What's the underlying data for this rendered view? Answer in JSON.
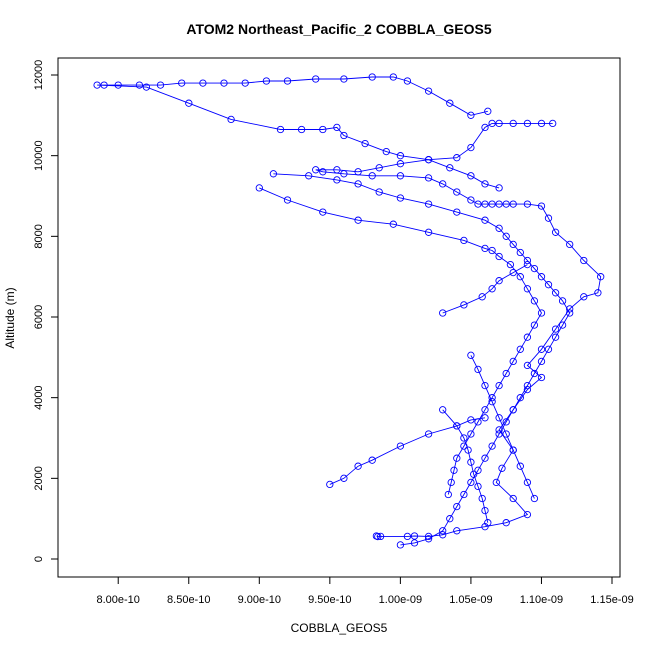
{
  "chart_data": {
    "type": "line",
    "title": "ATOM2 Northeast_Pacific_2 COBBLA_GEOS5",
    "xlabel": "COBBLA_GEOS5",
    "ylabel": "Altitude (m)",
    "xlim": [
      7.8e-10,
      1.15e-09
    ],
    "ylim": [
      0,
      12000
    ],
    "xticks": [
      8e-10,
      8.5e-10,
      9e-10,
      9.5e-10,
      1e-09,
      1.05e-09,
      1.1e-09,
      1.15e-09
    ],
    "xtick_labels": [
      "8.00e-10",
      "8.50e-10",
      "9.00e-10",
      "9.50e-10",
      "1.00e-09",
      "1.05e-09",
      "1.10e-09",
      "1.15e-09"
    ],
    "yticks": [
      0,
      2000,
      4000,
      6000,
      8000,
      10000,
      12000
    ],
    "ytick_labels": [
      "0",
      "2000",
      "4000",
      "6000",
      "8000",
      "10000",
      "12000"
    ],
    "grid": false,
    "marker": "open-circle",
    "color": "#0000ff",
    "series": [
      {
        "points": [
          [
            9.83e-10,
            570
          ],
          [
            9.84e-10,
            555
          ],
          [
            9.86e-10,
            560
          ],
          [
            1.005e-09,
            560
          ],
          [
            1.01e-09,
            570
          ],
          [
            1.02e-09,
            560
          ],
          [
            1.03e-09,
            600
          ],
          [
            1.04e-09,
            700
          ],
          [
            1.06e-09,
            800
          ],
          [
            1.075e-09,
            900
          ],
          [
            1.09e-09,
            1100
          ],
          [
            1.08e-09,
            1500
          ],
          [
            1.068e-09,
            1900
          ],
          [
            1.072e-09,
            2250
          ],
          [
            1.08e-09,
            2700
          ],
          [
            1.07e-09,
            3200
          ],
          [
            1.08e-09,
            3700
          ],
          [
            1.09e-09,
            4200
          ],
          [
            1.1e-09,
            4500
          ],
          [
            1.09e-09,
            4800
          ],
          [
            1.1e-09,
            5200
          ],
          [
            1.11e-09,
            5700
          ],
          [
            1.12e-09,
            6200
          ],
          [
            1.13e-09,
            6500
          ],
          [
            1.14e-09,
            6600
          ],
          [
            1.142e-09,
            7000
          ],
          [
            1.13e-09,
            7400
          ],
          [
            1.12e-09,
            7800
          ],
          [
            1.11e-09,
            8100
          ],
          [
            1.105e-09,
            8450
          ],
          [
            1.1e-09,
            8750
          ],
          [
            1.09e-09,
            8800
          ],
          [
            1.08e-09,
            8800
          ],
          [
            1.075e-09,
            8800
          ],
          [
            1.07e-09,
            8800
          ],
          [
            1.065e-09,
            8800
          ],
          [
            1.06e-09,
            8800
          ],
          [
            1.055e-09,
            8800
          ],
          [
            1.05e-09,
            8900
          ],
          [
            1.04e-09,
            9100
          ],
          [
            1.03e-09,
            9300
          ],
          [
            1.02e-09,
            9450
          ],
          [
            1e-09,
            9500
          ],
          [
            9.8e-10,
            9500
          ],
          [
            9.6e-10,
            9550
          ],
          [
            9.45e-10,
            9600
          ],
          [
            9.4e-10,
            9650
          ],
          [
            9.55e-10,
            9650
          ],
          [
            9.7e-10,
            9600
          ],
          [
            9.85e-10,
            9700
          ],
          [
            1e-09,
            9800
          ],
          [
            1.02e-09,
            9900
          ],
          [
            1.04e-09,
            9950
          ],
          [
            1.05e-09,
            10200
          ],
          [
            1.06e-09,
            10700
          ],
          [
            1.065e-09,
            10800
          ],
          [
            1.07e-09,
            10800
          ],
          [
            1.08e-09,
            10800
          ],
          [
            1.09e-09,
            10800
          ],
          [
            1.1e-09,
            10800
          ],
          [
            1.108e-09,
            10800
          ]
        ]
      },
      {
        "points": [
          [
            1.062e-09,
            11100
          ],
          [
            1.05e-09,
            11000
          ],
          [
            1.035e-09,
            11300
          ],
          [
            1.02e-09,
            11600
          ],
          [
            1.005e-09,
            11850
          ],
          [
            9.95e-10,
            11950
          ],
          [
            9.8e-10,
            11950
          ],
          [
            9.6e-10,
            11900
          ],
          [
            9.4e-10,
            11900
          ],
          [
            9.2e-10,
            11850
          ],
          [
            9.05e-10,
            11850
          ],
          [
            8.9e-10,
            11800
          ],
          [
            8.75e-10,
            11800
          ],
          [
            8.6e-10,
            11800
          ],
          [
            8.45e-10,
            11800
          ],
          [
            8.3e-10,
            11750
          ],
          [
            8.15e-10,
            11750
          ],
          [
            8e-10,
            11750
          ],
          [
            7.9e-10,
            11750
          ],
          [
            7.85e-10,
            11750
          ],
          [
            8.2e-10,
            11700
          ],
          [
            8.5e-10,
            11300
          ],
          [
            8.8e-10,
            10900
          ],
          [
            9.15e-10,
            10650
          ],
          [
            9.3e-10,
            10650
          ],
          [
            9.45e-10,
            10650
          ],
          [
            9.55e-10,
            10700
          ],
          [
            9.6e-10,
            10500
          ],
          [
            9.75e-10,
            10300
          ],
          [
            9.9e-10,
            10100
          ],
          [
            1e-09,
            10000
          ],
          [
            1.02e-09,
            9900
          ],
          [
            1.035e-09,
            9700
          ],
          [
            1.05e-09,
            9500
          ],
          [
            1.06e-09,
            9300
          ],
          [
            1.07e-09,
            9200
          ]
        ]
      },
      {
        "points": [
          [
            9.1e-10,
            9550
          ],
          [
            9.35e-10,
            9500
          ],
          [
            9.55e-10,
            9400
          ],
          [
            9.7e-10,
            9300
          ],
          [
            9.85e-10,
            9100
          ],
          [
            1e-09,
            8950
          ],
          [
            1.02e-09,
            8800
          ],
          [
            1.04e-09,
            8600
          ],
          [
            1.06e-09,
            8400
          ],
          [
            1.07e-09,
            8200
          ],
          [
            1.075e-09,
            8000
          ],
          [
            1.08e-09,
            7800
          ],
          [
            1.085e-09,
            7600
          ],
          [
            1.09e-09,
            7400
          ],
          [
            1.095e-09,
            7200
          ],
          [
            1.1e-09,
            7000
          ],
          [
            1.105e-09,
            6800
          ],
          [
            1.11e-09,
            6600
          ],
          [
            1.115e-09,
            6400
          ],
          [
            1.12e-09,
            6100
          ],
          [
            1.115e-09,
            5800
          ],
          [
            1.11e-09,
            5500
          ],
          [
            1.105e-09,
            5200
          ],
          [
            1.1e-09,
            4900
          ],
          [
            1.095e-09,
            4600
          ],
          [
            1.09e-09,
            4300
          ],
          [
            1.085e-09,
            4000
          ],
          [
            1.08e-09,
            3700
          ],
          [
            1.075e-09,
            3400
          ],
          [
            1.07e-09,
            3100
          ],
          [
            1.065e-09,
            2800
          ],
          [
            1.06e-09,
            2500
          ],
          [
            1.055e-09,
            2200
          ],
          [
            1.05e-09,
            1900
          ],
          [
            1.045e-09,
            1600
          ],
          [
            1.04e-09,
            1300
          ],
          [
            1.035e-09,
            1000
          ],
          [
            1.03e-09,
            700
          ],
          [
            1.02e-09,
            500
          ],
          [
            1.01e-09,
            400
          ],
          [
            1e-09,
            350
          ]
        ]
      },
      {
        "points": [
          [
            9e-10,
            9200
          ],
          [
            9.2e-10,
            8900
          ],
          [
            9.45e-10,
            8600
          ],
          [
            9.7e-10,
            8400
          ],
          [
            9.95e-10,
            8300
          ],
          [
            1.02e-09,
            8100
          ],
          [
            1.045e-09,
            7900
          ],
          [
            1.06e-09,
            7700
          ],
          [
            1.065e-09,
            7650
          ],
          [
            1.07e-09,
            7500
          ],
          [
            1.078e-09,
            7300
          ],
          [
            1.085e-09,
            7000
          ],
          [
            1.09e-09,
            6700
          ],
          [
            1.095e-09,
            6400
          ],
          [
            1.1e-09,
            6100
          ],
          [
            1.095e-09,
            5800
          ],
          [
            1.09e-09,
            5500
          ],
          [
            1.085e-09,
            5200
          ],
          [
            1.08e-09,
            4900
          ],
          [
            1.075e-09,
            4600
          ],
          [
            1.07e-09,
            4300
          ],
          [
            1.065e-09,
            4000
          ],
          [
            1.06e-09,
            3700
          ],
          [
            1.055e-09,
            3400
          ],
          [
            1.05e-09,
            3100
          ],
          [
            1.045e-09,
            2800
          ],
          [
            1.04e-09,
            2500
          ],
          [
            1.038e-09,
            2200
          ],
          [
            1.036e-09,
            1900
          ],
          [
            1.034e-09,
            1600
          ]
        ]
      },
      {
        "points": [
          [
            9.5e-10,
            1850
          ],
          [
            9.6e-10,
            2000
          ],
          [
            9.7e-10,
            2300
          ],
          [
            9.8e-10,
            2450
          ],
          [
            1e-09,
            2800
          ],
          [
            1.02e-09,
            3100
          ],
          [
            1.04e-09,
            3300
          ],
          [
            1.05e-09,
            3450
          ],
          [
            1.06e-09,
            3500
          ]
        ]
      },
      {
        "points": [
          [
            1.03e-09,
            6100
          ],
          [
            1.045e-09,
            6300
          ],
          [
            1.058e-09,
            6500
          ],
          [
            1.065e-09,
            6700
          ],
          [
            1.07e-09,
            6900
          ],
          [
            1.08e-09,
            7100
          ],
          [
            1.09e-09,
            7300
          ]
        ]
      },
      {
        "points": [
          [
            1.03e-09,
            3700
          ],
          [
            1.04e-09,
            3300
          ],
          [
            1.045e-09,
            3000
          ],
          [
            1.048e-09,
            2700
          ],
          [
            1.05e-09,
            2400
          ],
          [
            1.052e-09,
            2100
          ],
          [
            1.055e-09,
            1800
          ],
          [
            1.058e-09,
            1500
          ],
          [
            1.06e-09,
            1200
          ],
          [
            1.062e-09,
            900
          ]
        ]
      },
      {
        "points": [
          [
            1.05e-09,
            5050
          ],
          [
            1.055e-09,
            4700
          ],
          [
            1.06e-09,
            4300
          ],
          [
            1.065e-09,
            3900
          ],
          [
            1.07e-09,
            3500
          ],
          [
            1.075e-09,
            3100
          ],
          [
            1.08e-09,
            2700
          ],
          [
            1.085e-09,
            2300
          ],
          [
            1.09e-09,
            1900
          ],
          [
            1.095e-09,
            1500
          ]
        ]
      }
    ]
  }
}
